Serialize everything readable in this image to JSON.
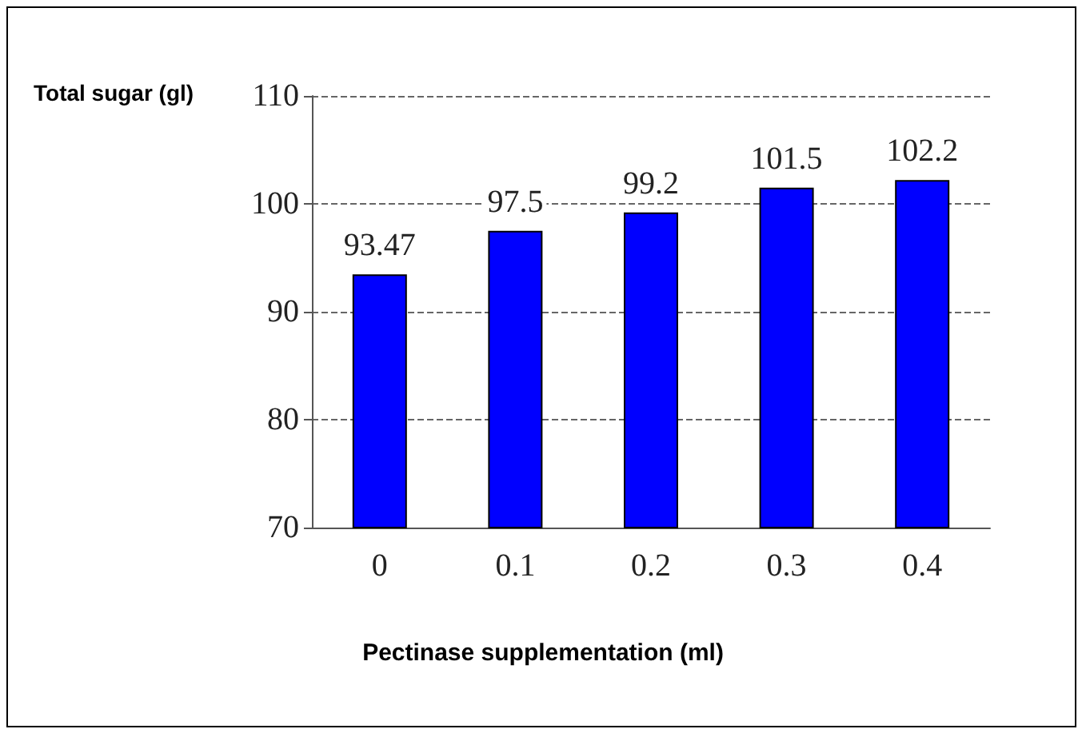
{
  "chart_data": {
    "type": "bar",
    "ylabel": "Total sugar (gl)",
    "xlabel": "Pectinase supplementation (ml)",
    "categories": [
      "0",
      "0.1",
      "0.2",
      "0.3",
      "0.4"
    ],
    "values": [
      93.47,
      97.5,
      99.2,
      101.5,
      102.2
    ],
    "color": "#0000ff",
    "ylim": [
      70,
      110
    ],
    "yticks": [
      70,
      80,
      90,
      100,
      110
    ],
    "grid": "y",
    "line_style": "dashed",
    "data_labels": true
  }
}
